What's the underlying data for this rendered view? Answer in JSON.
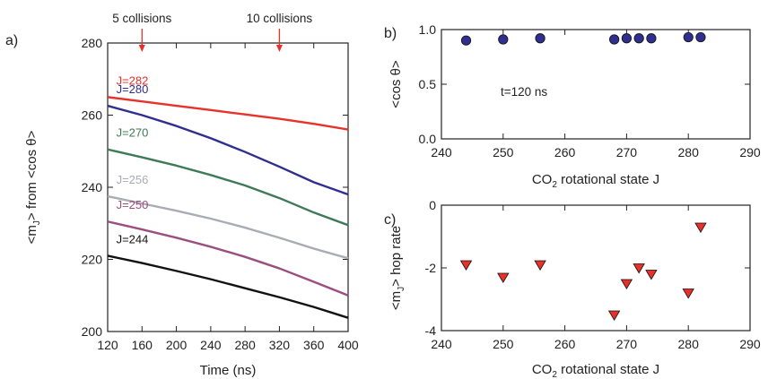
{
  "chart_data": [
    {
      "panel_label": "a)",
      "type": "line",
      "xlabel": "Time (ns)",
      "ylabel": "<m_J> from <cos θ>",
      "xlim": [
        120,
        400
      ],
      "ylim": [
        200,
        280
      ],
      "xticks": [
        120,
        160,
        200,
        240,
        280,
        320,
        360,
        400
      ],
      "yticks": [
        200,
        220,
        240,
        260,
        280
      ],
      "annotations": [
        {
          "text": "5 collisions",
          "x": 160
        },
        {
          "text": "10 collisions",
          "x": 320
        }
      ],
      "series": [
        {
          "name": "J=282",
          "color": "#e8312a",
          "x": [
            120,
            160,
            200,
            240,
            280,
            320,
            360,
            400
          ],
          "y": [
            265.0,
            263.8,
            262.6,
            261.4,
            260.2,
            259.0,
            257.6,
            256.0
          ]
        },
        {
          "name": "J=280",
          "color": "#2e2f8f",
          "x": [
            120,
            160,
            200,
            240,
            280,
            320,
            360,
            400
          ],
          "y": [
            262.6,
            260.0,
            257.0,
            253.6,
            249.8,
            245.7,
            241.4,
            238.0
          ]
        },
        {
          "name": "J=270",
          "color": "#3d7a55",
          "x": [
            120,
            160,
            200,
            240,
            280,
            320,
            360,
            400
          ],
          "y": [
            250.5,
            248.3,
            246.0,
            243.4,
            240.5,
            237.0,
            233.0,
            229.5
          ]
        },
        {
          "name": "J=256",
          "color": "#a9adb3",
          "x": [
            120,
            160,
            200,
            240,
            280,
            320,
            360,
            400
          ],
          "y": [
            237.5,
            235.5,
            233.5,
            231.3,
            228.8,
            226.0,
            223.0,
            220.3
          ]
        },
        {
          "name": "J=250",
          "color": "#9a4f7f",
          "x": [
            120,
            160,
            200,
            240,
            280,
            320,
            360,
            400
          ],
          "y": [
            230.5,
            228.3,
            226.0,
            223.5,
            220.7,
            217.5,
            213.8,
            210.0
          ]
        },
        {
          "name": "J=244",
          "color": "#111111",
          "x": [
            120,
            160,
            200,
            240,
            280,
            320,
            360,
            400
          ],
          "y": [
            221.0,
            219.0,
            216.8,
            214.5,
            212.0,
            209.5,
            206.8,
            203.8
          ]
        }
      ]
    },
    {
      "panel_label": "b)",
      "type": "scatter",
      "xlabel_main": "CO",
      "xlabel_sub": "2",
      "xlabel_rest": " rotational state J",
      "ylabel": "<cos θ>",
      "annotation": "t=120 ns",
      "xlim": [
        240,
        290
      ],
      "ylim": [
        0.0,
        1.0
      ],
      "xticks": [
        240,
        250,
        260,
        270,
        280,
        290
      ],
      "yticks": [
        "0.0",
        "0.5",
        "1.0"
      ],
      "marker_color": "#2e2f8f",
      "x": [
        244,
        250,
        256,
        268,
        270,
        272,
        274,
        280,
        282
      ],
      "y": [
        0.9,
        0.91,
        0.92,
        0.91,
        0.92,
        0.92,
        0.92,
        0.93,
        0.93
      ]
    },
    {
      "panel_label": "c)",
      "type": "scatter",
      "xlabel_main": "CO",
      "xlabel_sub": "2",
      "xlabel_rest": " rotational state J",
      "ylabel": "<m_J> hop rate",
      "xlim": [
        240,
        290
      ],
      "ylim": [
        -4,
        0
      ],
      "xticks": [
        240,
        250,
        260,
        270,
        280,
        290
      ],
      "yticks": [
        "-4",
        "-2",
        "0"
      ],
      "marker_color": "#e8312a",
      "x": [
        244,
        250,
        256,
        268,
        270,
        272,
        274,
        280,
        282
      ],
      "y": [
        -1.9,
        -2.3,
        -1.9,
        -3.5,
        -2.5,
        -2.0,
        -2.2,
        -2.8,
        -0.7
      ]
    }
  ]
}
